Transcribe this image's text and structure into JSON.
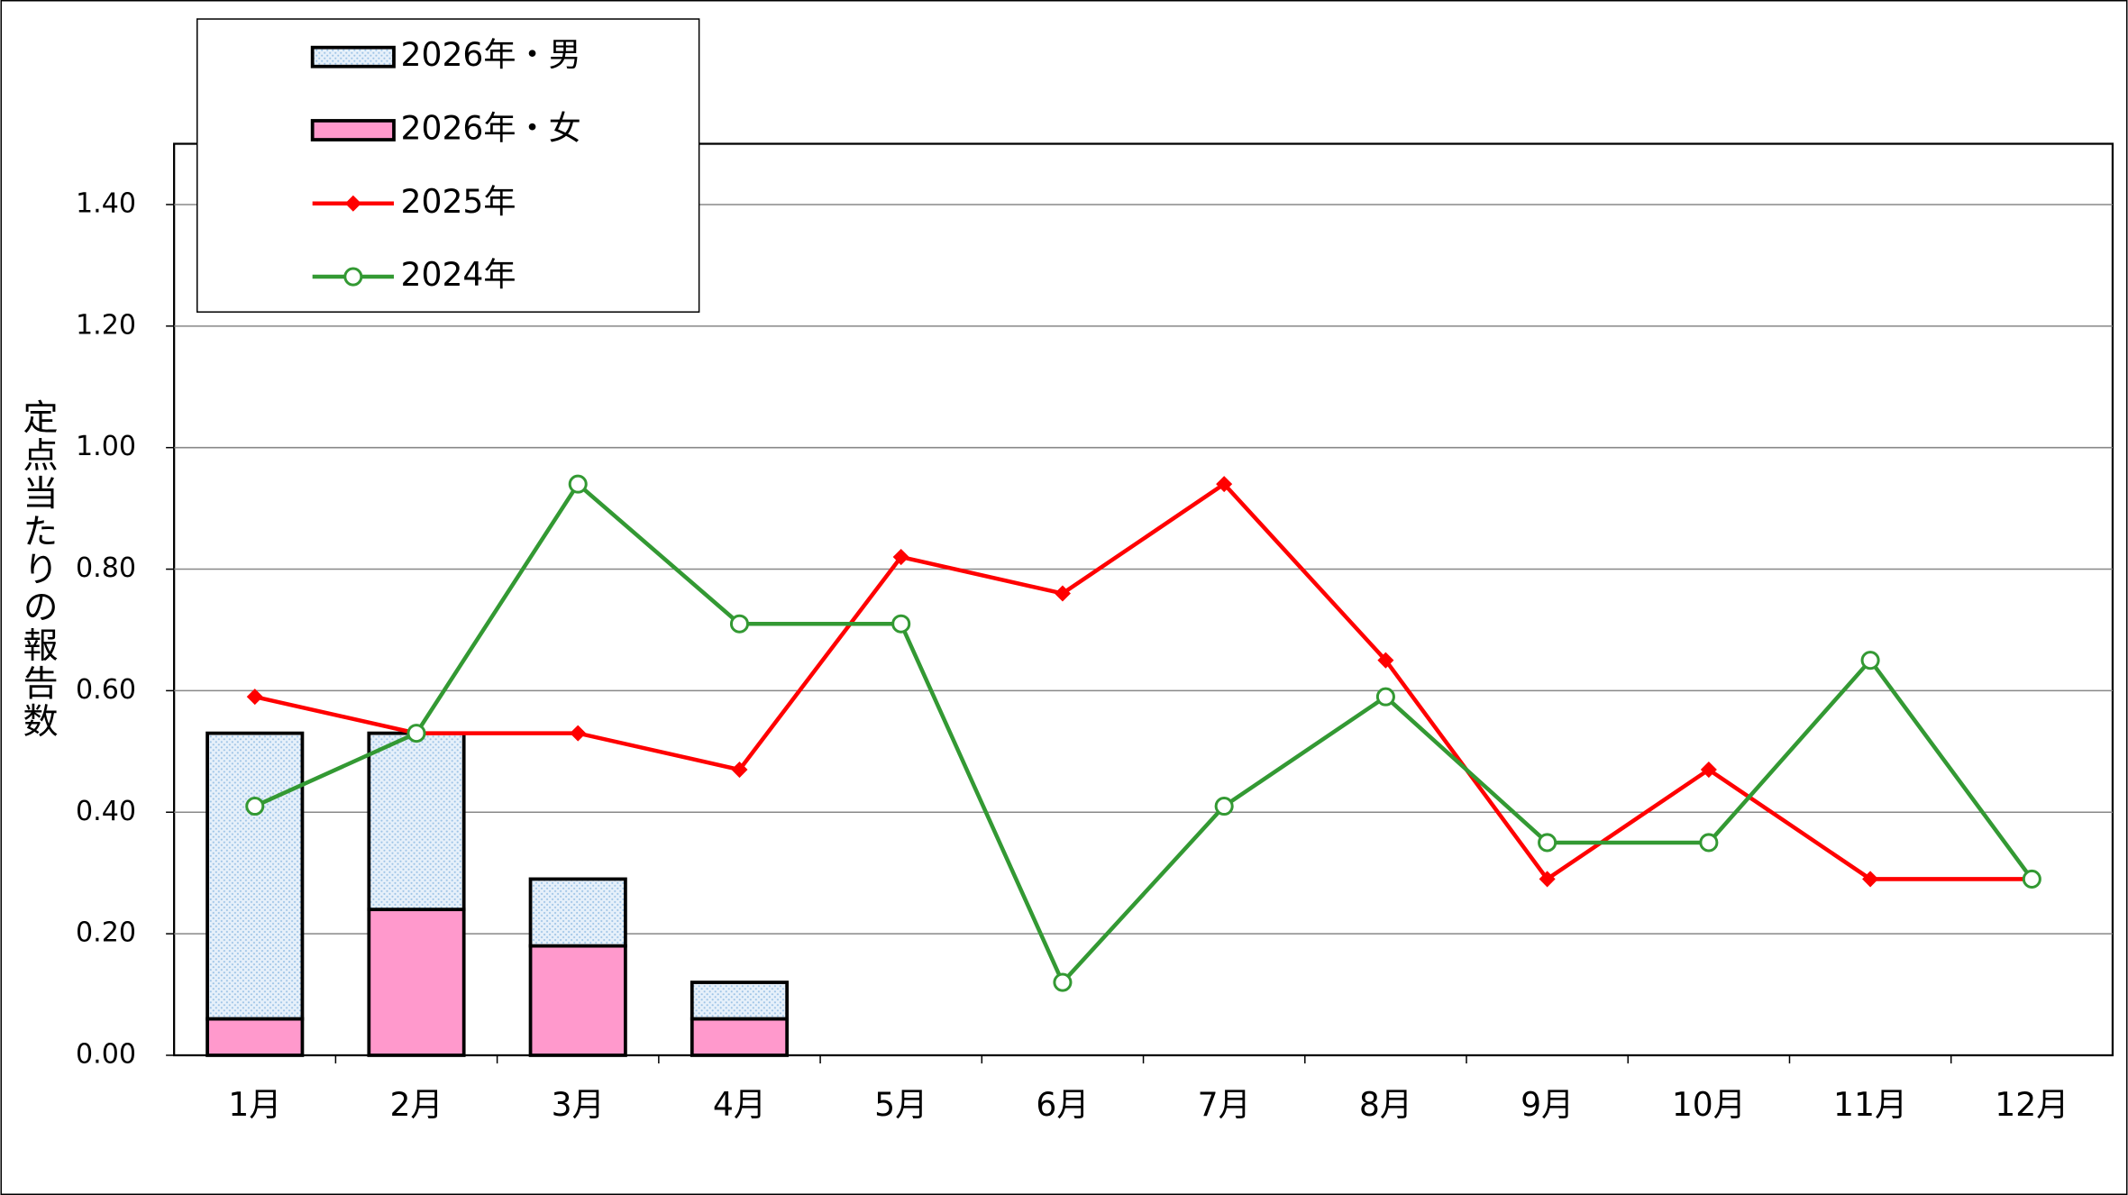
{
  "chart_data": {
    "type": "bar",
    "y_label": "定点当たりの報告数",
    "categories": [
      "1月",
      "2月",
      "3月",
      "4月",
      "5月",
      "6月",
      "7月",
      "8月",
      "9月",
      "10月",
      "11月",
      "12月"
    ],
    "series": [
      {
        "name": "2026年・男",
        "type": "bar",
        "color": "#dce9f7",
        "pattern": "dots",
        "values": [
          0.47,
          0.29,
          0.11,
          0.06,
          null,
          null,
          null,
          null,
          null,
          null,
          null,
          null
        ]
      },
      {
        "name": "2026年・女",
        "type": "bar",
        "color": "#ff99cc",
        "values": [
          0.06,
          0.24,
          0.18,
          0.06,
          null,
          null,
          null,
          null,
          null,
          null,
          null,
          null
        ]
      },
      {
        "name": "2025年",
        "type": "line",
        "marker": "diamond",
        "color": "#ff0000",
        "values": [
          0.59,
          0.53,
          0.53,
          0.47,
          0.82,
          0.76,
          0.94,
          0.65,
          0.29,
          0.47,
          0.29,
          0.29
        ]
      },
      {
        "name": "2024年",
        "type": "line",
        "marker": "circle",
        "color": "#339933",
        "values": [
          0.41,
          0.53,
          0.94,
          0.71,
          0.71,
          0.12,
          0.41,
          0.59,
          0.35,
          0.35,
          0.65,
          0.29
        ]
      }
    ],
    "ylim": [
      0,
      1.5
    ],
    "yticks": [
      {
        "value": 0,
        "label": "0.00"
      },
      {
        "value": 0.2,
        "label": "0.20"
      },
      {
        "value": 0.4,
        "label": "0.40"
      },
      {
        "value": 0.6,
        "label": "0.60"
      },
      {
        "value": 0.8,
        "label": "0.80"
      },
      {
        "value": 1,
        "label": "1.00"
      },
      {
        "value": 1.2,
        "label": "1.20"
      },
      {
        "value": 1.4,
        "label": "1.40"
      }
    ],
    "grid": true,
    "legend": "upper left"
  }
}
